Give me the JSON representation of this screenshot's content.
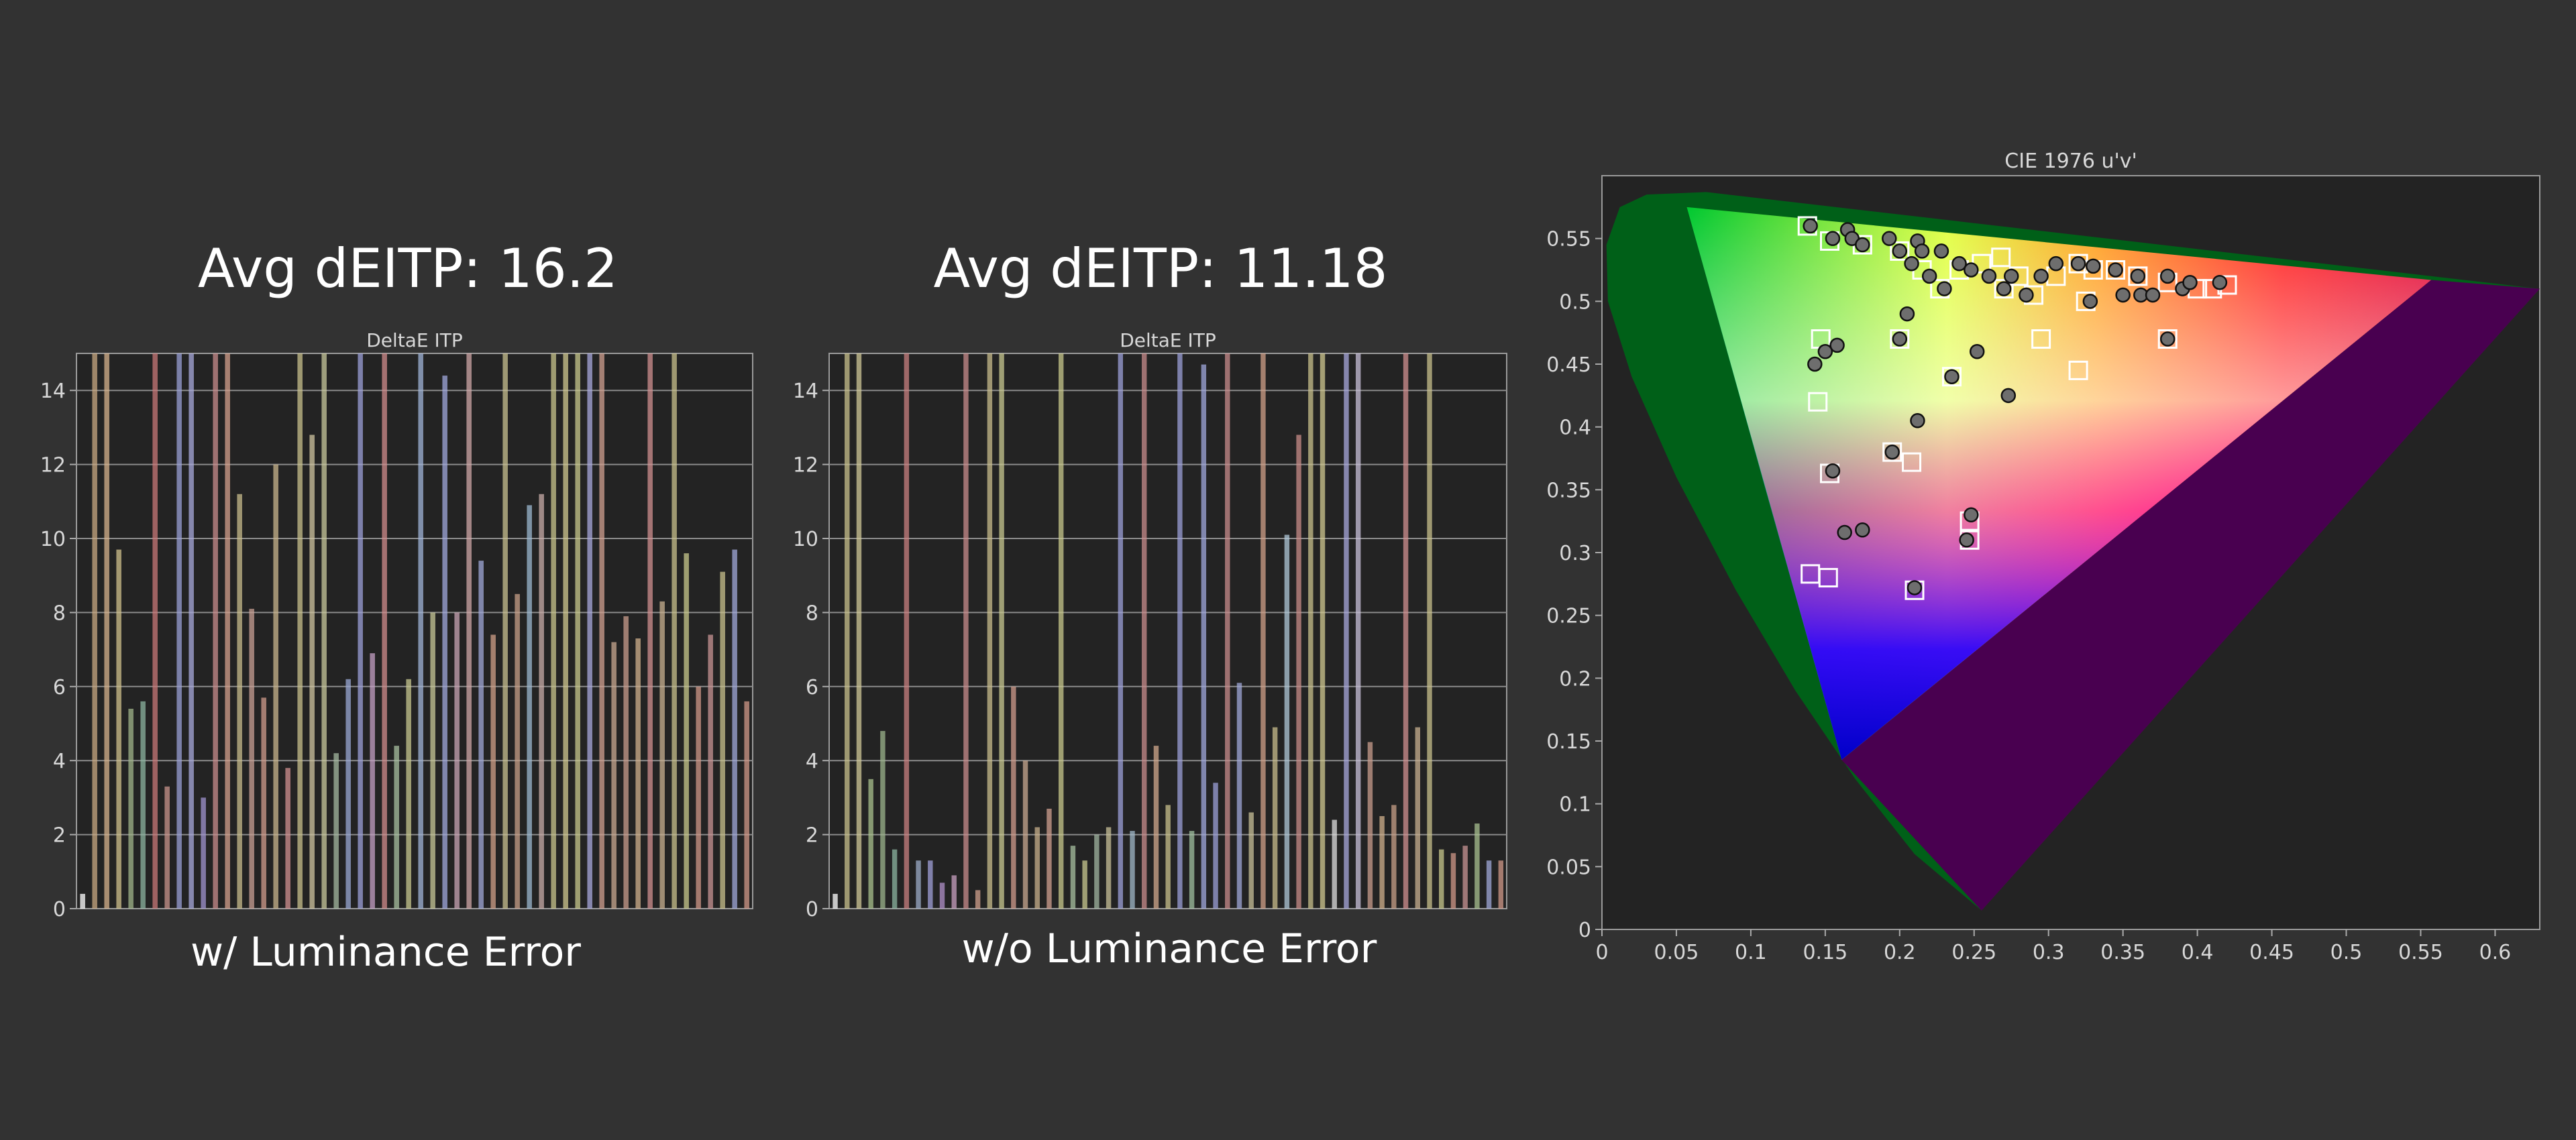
{
  "panels": [
    {
      "heading": "Avg dEITP: 16.2",
      "caption": "w/ Luminance Error",
      "chart_data": {
        "type": "bar",
        "title": "DeltaE ITP",
        "ylim": [
          0,
          15
        ],
        "yticks": [
          0,
          2,
          4,
          6,
          8,
          10,
          12,
          14
        ],
        "grid": true,
        "values": [
          0.4,
          16,
          16,
          9.7,
          5.4,
          5.6,
          16,
          3.3,
          16,
          16,
          3.0,
          16,
          16,
          11.2,
          8.1,
          5.7,
          12.0,
          3.8,
          16,
          12.8,
          16,
          4.2,
          6.2,
          16,
          6.9,
          16,
          4.4,
          6.2,
          16,
          8.0,
          14.4,
          8.0,
          16,
          9.4,
          7.4,
          16,
          8.5,
          10.9,
          11.2,
          16,
          16,
          16,
          16,
          16,
          7.2,
          7.9,
          7.3,
          16,
          8.3,
          16,
          9.6,
          6.0,
          7.4,
          9.1,
          9.7,
          5.6
        ],
        "colors": [
          "#ffffff",
          "#c8a882",
          "#d6b28c",
          "#cfc08c",
          "#a0b48a",
          "#8cb4a0",
          "#c87878",
          "#c8948c",
          "#9aa0d6",
          "#a8aadc",
          "#a094d0",
          "#c88c8c",
          "#d4a08c",
          "#c8bc8c",
          "#c8a094",
          "#d09c8c",
          "#c8b48c",
          "#d09090",
          "#c8c08c",
          "#cfc4a0",
          "#c8c89c",
          "#a4b8a0",
          "#9aa8d4",
          "#9ca0d8",
          "#c4a0c4",
          "#d08c8c",
          "#a8c0a0",
          "#c8c890",
          "#a0b4d8",
          "#c8c898",
          "#a0a8dc",
          "#c8a4b4",
          "#d0a8a8",
          "#a0a8d8",
          "#d0a088",
          "#c8c090",
          "#c8a088",
          "#9cb8d0",
          "#c8aca8",
          "#c8c48c",
          "#d0c890",
          "#c8c88c",
          "#a8a8dc",
          "#d0a090",
          "#c8a890",
          "#c89c8c",
          "#d0b08c",
          "#d09090",
          "#c8b090",
          "#c8c08c",
          "#c8c88c",
          "#d09888",
          "#c89494",
          "#c8c08c",
          "#a0a8d8",
          "#d09888"
        ]
      }
    },
    {
      "heading": "Avg dEITP: 11.18",
      "caption": "w/o Luminance Error",
      "chart_data": {
        "type": "bar",
        "title": "DeltaE ITP",
        "ylim": [
          0,
          15
        ],
        "yticks": [
          0,
          2,
          4,
          6,
          8,
          10,
          12,
          14
        ],
        "grid": true,
        "values": [
          0.4,
          16,
          16,
          3.5,
          4.8,
          1.6,
          16,
          1.3,
          1.3,
          0.7,
          0.9,
          16,
          0.5,
          16,
          16,
          6.0,
          4.0,
          2.2,
          2.7,
          16,
          1.7,
          1.3,
          2.0,
          2.2,
          16,
          2.1,
          16,
          4.4,
          2.8,
          16,
          2.1,
          14.7,
          3.4,
          16,
          6.1,
          2.6,
          16,
          4.9,
          10.1,
          12.8,
          16,
          16,
          2.4,
          16,
          16,
          4.5,
          2.5,
          2.8,
          16,
          4.9,
          16,
          1.6,
          1.5,
          1.7,
          2.3,
          1.3,
          1.3
        ],
        "colors": [
          "#ffffff",
          "#c8c08c",
          "#d0c898",
          "#a8c08c",
          "#9cb48c",
          "#8cb4a0",
          "#c88080",
          "#9cacc8",
          "#a0a0d8",
          "#b090c8",
          "#c8a0c0",
          "#c88c8c",
          "#d0a08c",
          "#c8bc8c",
          "#c8c890",
          "#d09c8c",
          "#c8a890",
          "#c8b08c",
          "#d0a090",
          "#c8c88c",
          "#a8c0a0",
          "#c8c890",
          "#a0b4a0",
          "#c8c098",
          "#9ca0d8",
          "#a0b8c8",
          "#c88c8c",
          "#d0a88c",
          "#c8c08c",
          "#9ca0d8",
          "#a0c0a0",
          "#a0a8dc",
          "#9ca0d8",
          "#c88c8c",
          "#a0a8d8",
          "#c8c098",
          "#d0a088",
          "#c8bc8c",
          "#b0c8d8",
          "#c88c88",
          "#c8c08c",
          "#d0c890",
          "#dcdcdc",
          "#a8a8dc",
          "#c8c0d8",
          "#c89c8c",
          "#d0b08c",
          "#c8a088",
          "#d09090",
          "#c8b090",
          "#c8c08c",
          "#c8c88c",
          "#d09888",
          "#c89494",
          "#a8c090",
          "#a0a8d8",
          "#d09888"
        ]
      }
    }
  ],
  "cie": {
    "chart_data": {
      "type": "scatter",
      "title": "CIE 1976 u'v'",
      "xlim": [
        0,
        0.63
      ],
      "ylim": [
        0,
        0.6
      ],
      "xticks": [
        0,
        0.05,
        0.1,
        0.15,
        0.2,
        0.25,
        0.3,
        0.35,
        0.4,
        0.45,
        0.5,
        0.55,
        0.6
      ],
      "yticks": [
        0,
        0.05,
        0.1,
        0.15,
        0.2,
        0.25,
        0.3,
        0.35,
        0.4,
        0.45,
        0.5,
        0.55
      ],
      "gamut": {
        "outer_triangle": [
          [
            0.0,
            0.6
          ],
          [
            0.63,
            0.51
          ],
          [
            0.255,
            0.015
          ]
        ],
        "inner_triangle": [
          [
            0.057,
            0.575
          ],
          [
            0.557,
            0.517
          ],
          [
            0.161,
            0.135
          ]
        ]
      },
      "series": [
        {
          "marker": "square",
          "points": [
            [
              0.138,
              0.56
            ],
            [
              0.153,
              0.548
            ],
            [
              0.175,
              0.545
            ],
            [
              0.2,
              0.54
            ],
            [
              0.215,
              0.525
            ],
            [
              0.227,
              0.51
            ],
            [
              0.24,
              0.525
            ],
            [
              0.255,
              0.53
            ],
            [
              0.268,
              0.535
            ],
            [
              0.27,
              0.51
            ],
            [
              0.28,
              0.52
            ],
            [
              0.29,
              0.505
            ],
            [
              0.305,
              0.52
            ],
            [
              0.32,
              0.53
            ],
            [
              0.33,
              0.525
            ],
            [
              0.345,
              0.525
            ],
            [
              0.36,
              0.52
            ],
            [
              0.38,
              0.515
            ],
            [
              0.4,
              0.51
            ],
            [
              0.41,
              0.51
            ],
            [
              0.42,
              0.513
            ],
            [
              0.325,
              0.5
            ],
            [
              0.295,
              0.47
            ],
            [
              0.32,
              0.445
            ],
            [
              0.38,
              0.47
            ],
            [
              0.2,
              0.47
            ],
            [
              0.147,
              0.47
            ],
            [
              0.145,
              0.42
            ],
            [
              0.153,
              0.363
            ],
            [
              0.195,
              0.38
            ],
            [
              0.208,
              0.372
            ],
            [
              0.235,
              0.44
            ],
            [
              0.247,
              0.325
            ],
            [
              0.247,
              0.31
            ],
            [
              0.21,
              0.27
            ],
            [
              0.14,
              0.283
            ],
            [
              0.152,
              0.28
            ]
          ]
        },
        {
          "marker": "circle",
          "points": [
            [
              0.14,
              0.56
            ],
            [
              0.155,
              0.55
            ],
            [
              0.165,
              0.557
            ],
            [
              0.168,
              0.55
            ],
            [
              0.175,
              0.545
            ],
            [
              0.193,
              0.55
            ],
            [
              0.2,
              0.54
            ],
            [
              0.208,
              0.53
            ],
            [
              0.212,
              0.548
            ],
            [
              0.215,
              0.54
            ],
            [
              0.22,
              0.52
            ],
            [
              0.228,
              0.54
            ],
            [
              0.23,
              0.51
            ],
            [
              0.24,
              0.53
            ],
            [
              0.248,
              0.525
            ],
            [
              0.26,
              0.52
            ],
            [
              0.27,
              0.51
            ],
            [
              0.275,
              0.52
            ],
            [
              0.285,
              0.505
            ],
            [
              0.295,
              0.52
            ],
            [
              0.305,
              0.53
            ],
            [
              0.32,
              0.53
            ],
            [
              0.328,
              0.5
            ],
            [
              0.33,
              0.528
            ],
            [
              0.345,
              0.525
            ],
            [
              0.35,
              0.505
            ],
            [
              0.36,
              0.52
            ],
            [
              0.362,
              0.505
            ],
            [
              0.37,
              0.505
            ],
            [
              0.38,
              0.52
            ],
            [
              0.39,
              0.51
            ],
            [
              0.395,
              0.515
            ],
            [
              0.415,
              0.515
            ],
            [
              0.205,
              0.49
            ],
            [
              0.2,
              0.47
            ],
            [
              0.15,
              0.46
            ],
            [
              0.143,
              0.45
            ],
            [
              0.158,
              0.465
            ],
            [
              0.252,
              0.46
            ],
            [
              0.235,
              0.44
            ],
            [
              0.273,
              0.425
            ],
            [
              0.212,
              0.405
            ],
            [
              0.195,
              0.38
            ],
            [
              0.155,
              0.365
            ],
            [
              0.38,
              0.47
            ],
            [
              0.248,
              0.33
            ],
            [
              0.245,
              0.31
            ],
            [
              0.175,
              0.318
            ],
            [
              0.163,
              0.316
            ],
            [
              0.21,
              0.272
            ]
          ]
        }
      ]
    }
  }
}
